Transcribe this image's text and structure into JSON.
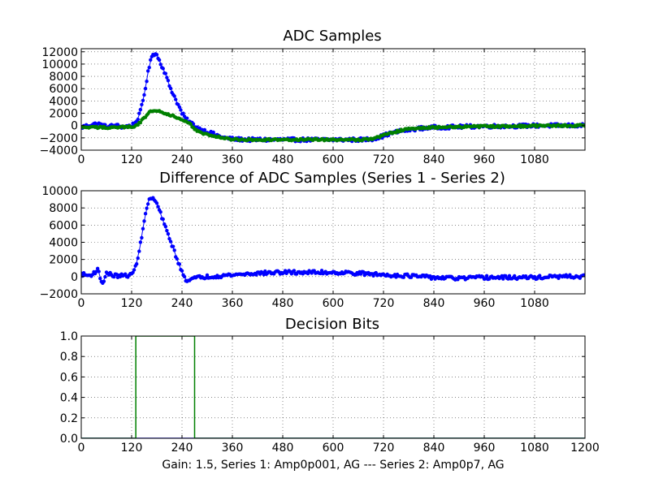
{
  "footer": "Gain: 1.5, Series 1: Amp0p001, AG --- Series 2: Amp0p7, AG",
  "colors": {
    "series1": "#0000ff",
    "series2": "#008000"
  },
  "chart_data": [
    {
      "type": "scatter",
      "title": "ADC Samples",
      "xlim": [
        0,
        1200
      ],
      "ylim": [
        -4000,
        12500
      ],
      "grid": true,
      "xticks": [
        0,
        120,
        240,
        360,
        480,
        600,
        720,
        840,
        960,
        1080
      ],
      "xtick_labels": [
        "0",
        "120",
        "240",
        "360",
        "480",
        "600",
        "720",
        "840",
        "960",
        "1080"
      ],
      "yticks": [
        -4000,
        -2000,
        0,
        2000,
        4000,
        6000,
        8000,
        10000,
        12000
      ],
      "ytick_labels": [
        "−4000",
        "−2000",
        "0",
        "2000",
        "4000",
        "6000",
        "8000",
        "10000",
        "12000"
      ],
      "series": [
        {
          "color": "#0000ff",
          "x": [
            0,
            20,
            40,
            60,
            80,
            100,
            120,
            130,
            140,
            150,
            160,
            170,
            180,
            190,
            200,
            210,
            220,
            230,
            240,
            250,
            260,
            270,
            280,
            300,
            320,
            340,
            360,
            400,
            450,
            500,
            550,
            600,
            640,
            670,
            690,
            710,
            730,
            760,
            800,
            840,
            900,
            960,
            1020,
            1080,
            1140,
            1200
          ],
          "y": [
            -300,
            100,
            300,
            -200,
            0,
            -200,
            0,
            500,
            2000,
            5000,
            9000,
            11800,
            11500,
            10000,
            8500,
            6500,
            5000,
            3500,
            2000,
            1000,
            500,
            0,
            -500,
            -1000,
            -1500,
            -2000,
            -2200,
            -2300,
            -2300,
            -2300,
            -2300,
            -2300,
            -2300,
            -2300,
            -2200,
            -1900,
            -1400,
            -900,
            -500,
            -300,
            -200,
            -100,
            -100,
            0,
            0,
            0
          ]
        },
        {
          "color": "#008000",
          "x": [
            0,
            40,
            80,
            120,
            130,
            140,
            150,
            160,
            170,
            180,
            190,
            200,
            210,
            220,
            240,
            260,
            270,
            280,
            300,
            340,
            360,
            400,
            500,
            600,
            660,
            690,
            720,
            760,
            800,
            840,
            900,
            960,
            1020,
            1080,
            1140,
            1200
          ],
          "y": [
            -300,
            -300,
            -300,
            -200,
            0,
            500,
            1200,
            2000,
            2500,
            2500,
            2300,
            2000,
            1800,
            1500,
            900,
            200,
            -500,
            -1000,
            -1500,
            -2000,
            -2300,
            -2300,
            -2300,
            -2300,
            -2300,
            -2200,
            -1600,
            -800,
            -400,
            -300,
            -200,
            -150,
            -100,
            -50,
            0,
            0
          ]
        }
      ]
    },
    {
      "type": "scatter",
      "title": "Difference of ADC Samples (Series 1 - Series 2)",
      "xlim": [
        0,
        1200
      ],
      "ylim": [
        -2000,
        10000
      ],
      "grid": true,
      "xticks": [
        0,
        120,
        240,
        360,
        480,
        600,
        720,
        840,
        960,
        1080
      ],
      "xtick_labels": [
        "0",
        "120",
        "240",
        "360",
        "480",
        "600",
        "720",
        "840",
        "960",
        "1080"
      ],
      "yticks": [
        -2000,
        0,
        2000,
        4000,
        6000,
        8000,
        10000
      ],
      "ytick_labels": [
        "−2000",
        "0",
        "2000",
        "4000",
        "6000",
        "8000",
        "10000"
      ],
      "series": [
        {
          "color": "#0000ff",
          "x": [
            0,
            20,
            40,
            50,
            60,
            80,
            100,
            120,
            130,
            140,
            150,
            160,
            170,
            180,
            190,
            200,
            210,
            220,
            230,
            240,
            250,
            260,
            280,
            300,
            360,
            420,
            480,
            540,
            600,
            660,
            720,
            780,
            840,
            900,
            960,
            1020,
            1080,
            1140,
            1200
          ],
          "y": [
            300,
            100,
            800,
            -900,
            400,
            100,
            100,
            200,
            1200,
            3500,
            6500,
            8800,
            9200,
            8500,
            7200,
            5800,
            4500,
            3200,
            1800,
            500,
            -400,
            -300,
            -100,
            0,
            200,
            400,
            500,
            500,
            500,
            400,
            200,
            100,
            -100,
            -200,
            -100,
            -100,
            -100,
            0,
            0
          ]
        }
      ]
    },
    {
      "type": "line",
      "title": "Decision Bits",
      "xlim": [
        0,
        1200
      ],
      "ylim": [
        0,
        1
      ],
      "grid": true,
      "xticks": [
        0,
        120,
        240,
        360,
        480,
        600,
        720,
        840,
        960,
        1080,
        1200
      ],
      "xtick_labels": [
        "0",
        "120",
        "240",
        "360",
        "480",
        "600",
        "720",
        "840",
        "960",
        "1080",
        "1200"
      ],
      "yticks": [
        0,
        0.2,
        0.4,
        0.6,
        0.8,
        1.0
      ],
      "ytick_labels": [
        "0.0",
        "0.2",
        "0.4",
        "0.6",
        "0.8",
        "1.0"
      ],
      "series": [
        {
          "color": "#0000ff",
          "x": [
            0,
            1200
          ],
          "y": [
            0,
            0
          ]
        },
        {
          "color": "#008000",
          "x": [
            0,
            130,
            130,
            270,
            270,
            1200
          ],
          "y": [
            0,
            0,
            1,
            1,
            0,
            0
          ]
        }
      ]
    }
  ]
}
